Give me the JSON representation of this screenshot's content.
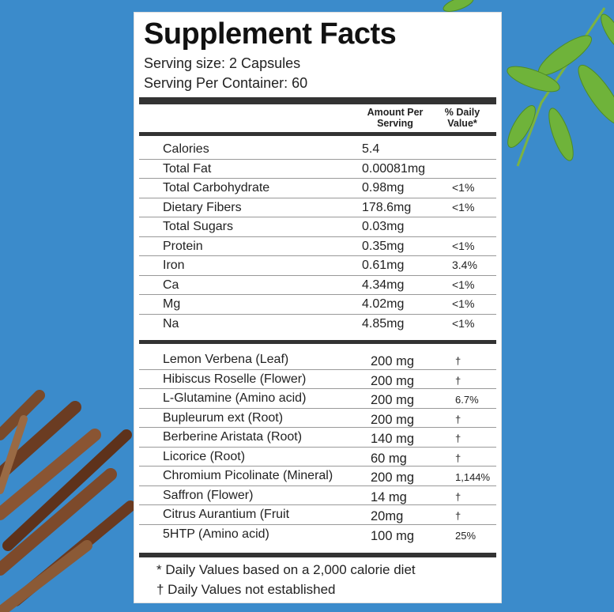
{
  "title": "Supplement Facts",
  "serving_size": "Serving size: 2 Capsules",
  "servings_per_container": "Serving Per Container: 60",
  "headers": {
    "amount": "Amount Per Serving",
    "daily_value": "% Daily Value*"
  },
  "nutrients": [
    {
      "name": "Calories",
      "amount": "5.4",
      "dv": ""
    },
    {
      "name": "Total Fat",
      "amount": "0.00081mg",
      "dv": ""
    },
    {
      "name": "Total Carbohydrate",
      "amount": "0.98mg",
      "dv": "<1%"
    },
    {
      "name": "Dietary Fibers",
      "amount": "178.6mg",
      "dv": "<1%"
    },
    {
      "name": "Total Sugars",
      "amount": "0.03mg",
      "dv": ""
    },
    {
      "name": "Protein",
      "amount": "0.35mg",
      "dv": "<1%"
    },
    {
      "name": "Iron",
      "amount": "0.61mg",
      "dv": "3.4%"
    },
    {
      "name": "Ca",
      "amount": "4.34mg",
      "dv": "<1%"
    },
    {
      "name": "Mg",
      "amount": "4.02mg",
      "dv": "<1%"
    },
    {
      "name": "Na",
      "amount": "4.85mg",
      "dv": "<1%"
    }
  ],
  "ingredients": [
    {
      "name": "Lemon Verbena (Leaf)",
      "amount": "200 mg",
      "dv": "†"
    },
    {
      "name": "Hibiscus Roselle (Flower)",
      "amount": "200 mg",
      "dv": "†"
    },
    {
      "name": "L-Glutamine (Amino acid)",
      "amount": "200 mg",
      "dv": "6.7%"
    },
    {
      "name": "Bupleurum ext (Root)",
      "amount": "200 mg",
      "dv": "†"
    },
    {
      "name": "Berberine Aristata (Root)",
      "amount": "140 mg",
      "dv": "†"
    },
    {
      "name": "Licorice (Root)",
      "amount": "60 mg",
      "dv": "†"
    },
    {
      "name": "Chromium Picolinate (Mineral)",
      "amount": "200 mg",
      "dv": "1,144%"
    },
    {
      "name": "Saffron (Flower)",
      "amount": "14 mg",
      "dv": "†"
    },
    {
      "name": "Citrus Aurantium (Fruit",
      "amount": "20mg",
      "dv": "†"
    },
    {
      "name": "5HTP  (Amino acid)",
      "amount": "100 mg",
      "dv": "25%"
    }
  ],
  "footnotes": [
    "* Daily Values based on a 2,000 calorie diet",
    "† Daily Values not established"
  ],
  "colors": {
    "background": "#3b8bcb",
    "panel": "#ffffff",
    "rule": "#333333"
  }
}
